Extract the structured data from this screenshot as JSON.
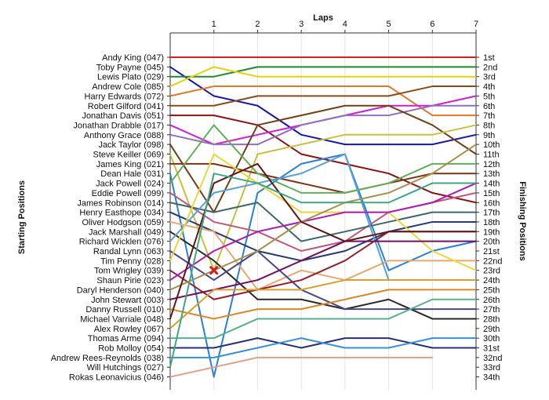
{
  "chart_data": {
    "type": "line",
    "title": "Laps",
    "ylabel_left": "Starting Positions",
    "ylabel_right": "Finishing Positions",
    "x_ticks": [
      "1",
      "2",
      "3",
      "4",
      "5",
      "6",
      "7"
    ],
    "xlim": [
      0,
      7
    ],
    "grid": true,
    "finishing_labels": [
      "1st",
      "2nd",
      "3rd",
      "4th",
      "5th",
      "6th",
      "7th",
      "8th",
      "9th",
      "10th",
      "11th",
      "12th",
      "13th",
      "14th",
      "15th",
      "16th",
      "17th",
      "18th",
      "19th",
      "20th",
      "21st",
      "22nd",
      "23rd",
      "24th",
      "25th",
      "26th",
      "27th",
      "28th",
      "29th",
      "30th",
      "31st",
      "32nd",
      "33rd",
      "34th"
    ],
    "series": [
      {
        "name": "Andy King (047)",
        "color": "#d42020",
        "positions": [
          1,
          1,
          1,
          1,
          1,
          1,
          1,
          1
        ]
      },
      {
        "name": "Toby Payne (045)",
        "color": "#1818a8",
        "positions": [
          2,
          5,
          6,
          9,
          10,
          10,
          10,
          9
        ]
      },
      {
        "name": "Lewis Plato (029)",
        "color": "#1e8c2a",
        "positions": [
          3,
          3,
          2,
          2,
          2,
          2,
          2,
          2
        ]
      },
      {
        "name": "Andrew Cole (085)",
        "color": "#e8d010",
        "positions": [
          4,
          2,
          3,
          3,
          3,
          3,
          3,
          3
        ]
      },
      {
        "name": "Harry Edwards (072)",
        "color": "#e07828",
        "positions": [
          5,
          4,
          4,
          4,
          4,
          4,
          7,
          7
        ]
      },
      {
        "name": "Robert Gilford (041)",
        "color": "#8b4a1c",
        "positions": [
          6,
          6,
          5,
          5,
          5,
          5,
          4,
          4
        ]
      },
      {
        "name": "Jonathan Davis (051)",
        "color": "#8c1414",
        "positions": [
          7,
          7,
          8,
          11,
          12,
          13,
          15,
          16
        ]
      },
      {
        "name": "Jonathan Drabble (017)",
        "color": "#d01ed0",
        "positions": [
          8,
          10,
          9,
          8,
          7,
          6,
          6,
          5
        ]
      },
      {
        "name": "Anthony Grace (088)",
        "color": "#9070c0",
        "positions": [
          9,
          10,
          10,
          8,
          7,
          7,
          6,
          6
        ]
      },
      {
        "name": "Jack Taylor (098)",
        "color": "#704018",
        "positions": [
          10,
          17,
          8,
          7,
          6,
          6,
          8,
          11
        ]
      },
      {
        "name": "Steve Keiller (069)",
        "color": "#c8c040",
        "positions": [
          11,
          23,
          11,
          10,
          9,
          9,
          9,
          8
        ]
      },
      {
        "name": "James King (021)",
        "color": "#7a3418",
        "positions": [
          12,
          12,
          13,
          14,
          15,
          14,
          13,
          13
        ]
      },
      {
        "name": "Dean Hale (031)",
        "color": "#2880d8",
        "positions": [
          13,
          34,
          15,
          12,
          11,
          23,
          21,
          20
        ]
      },
      {
        "name": "Jack Powell (024)",
        "color": "#60b058",
        "positions": [
          14,
          8,
          13,
          15,
          15,
          14,
          12,
          12
        ]
      },
      {
        "name": "Eddie Powell (099)",
        "color": "#c05878",
        "positions": [
          15,
          18,
          19,
          21,
          20,
          17,
          16,
          15
        ]
      },
      {
        "name": "James Robinson (014)",
        "color": "#406868",
        "positions": [
          16,
          17,
          16,
          20,
          19,
          18,
          17,
          17
        ]
      },
      {
        "name": "Henry Easthope (034)",
        "color": "#283878",
        "positions": [
          17,
          19,
          21,
          22,
          21,
          19,
          18,
          18
        ]
      },
      {
        "name": "Oliver Hodgson (059)",
        "color": "#e8a870",
        "positions": [
          18,
          19,
          25,
          23,
          24,
          22,
          22,
          22
        ]
      },
      {
        "name": "Jack Marshall (049)",
        "color": "#2a2a2a",
        "positions": [
          19,
          22,
          26,
          26,
          27,
          26,
          28,
          28
        ]
      },
      {
        "name": "Richard Wicklen (076)",
        "color": "#58a0d8",
        "positions": [
          20,
          15,
          14,
          13,
          11,
          24,
          24,
          24
        ]
      },
      {
        "name": "Randal Lynn (063)",
        "color": "#484888",
        "positions": [
          21,
          24,
          21,
          25,
          27,
          27,
          27,
          27
        ]
      },
      {
        "name": "Tim Penny (028)",
        "color": "#e8d840",
        "positions": [
          22,
          11,
          14,
          17,
          17,
          17,
          21,
          23
        ]
      },
      {
        "name": "Tom Wrigley (039)",
        "color": "#902030",
        "positions": [
          23,
          26,
          25,
          24,
          22,
          19,
          19,
          19
        ]
      },
      {
        "name": "Shaun Pirie (023)",
        "color": "#b01ab0",
        "positions": [
          24,
          21,
          19,
          18,
          17,
          17,
          16,
          14
        ]
      },
      {
        "name": "Daryl Henderson (040)",
        "color": "#a89050",
        "positions": [
          25,
          23,
          21,
          18,
          16,
          15,
          13,
          10
        ]
      },
      {
        "name": "John Stewart (003)",
        "color": "#701060",
        "positions": [
          26,
          25,
          24,
          22,
          20,
          20,
          20,
          20
        ]
      },
      {
        "name": "Danny Russell (010)",
        "color": "#d88828",
        "positions": [
          27,
          28,
          27,
          27,
          26,
          25,
          25,
          25
        ]
      },
      {
        "name": "Michael Varriale (048)",
        "color": "#601818",
        "positions": [
          28,
          14,
          12,
          18,
          20,
          19,
          19,
          19
        ]
      },
      {
        "name": "Alex Rowley (067)",
        "color": "#d8a030",
        "positions": [
          29,
          25,
          25,
          25,
          24,
          24,
          24,
          24
        ]
      },
      {
        "name": "Thomas Arme (094)",
        "color": "#58b090",
        "positions": [
          30,
          30,
          28,
          28,
          28,
          28,
          26,
          26
        ]
      },
      {
        "name": "Rob Molloy (054)",
        "color": "#283070",
        "positions": [
          31,
          31,
          30,
          31,
          30,
          30,
          31,
          31
        ]
      },
      {
        "name": "Andrew Rees-Reynolds (038)",
        "color": "#3890d8",
        "positions": [
          32,
          32,
          31,
          30,
          31,
          31,
          30,
          30
        ]
      },
      {
        "name": "Will Hutchings (027)",
        "color": "#40a880",
        "positions": [
          33,
          13,
          14,
          16,
          16,
          16,
          14,
          14
        ]
      },
      {
        "name": "Rokas Leonavicius (046)",
        "color": "#e0a090",
        "positions": [
          34,
          33,
          32,
          32,
          32,
          32,
          32,
          null
        ]
      }
    ]
  }
}
